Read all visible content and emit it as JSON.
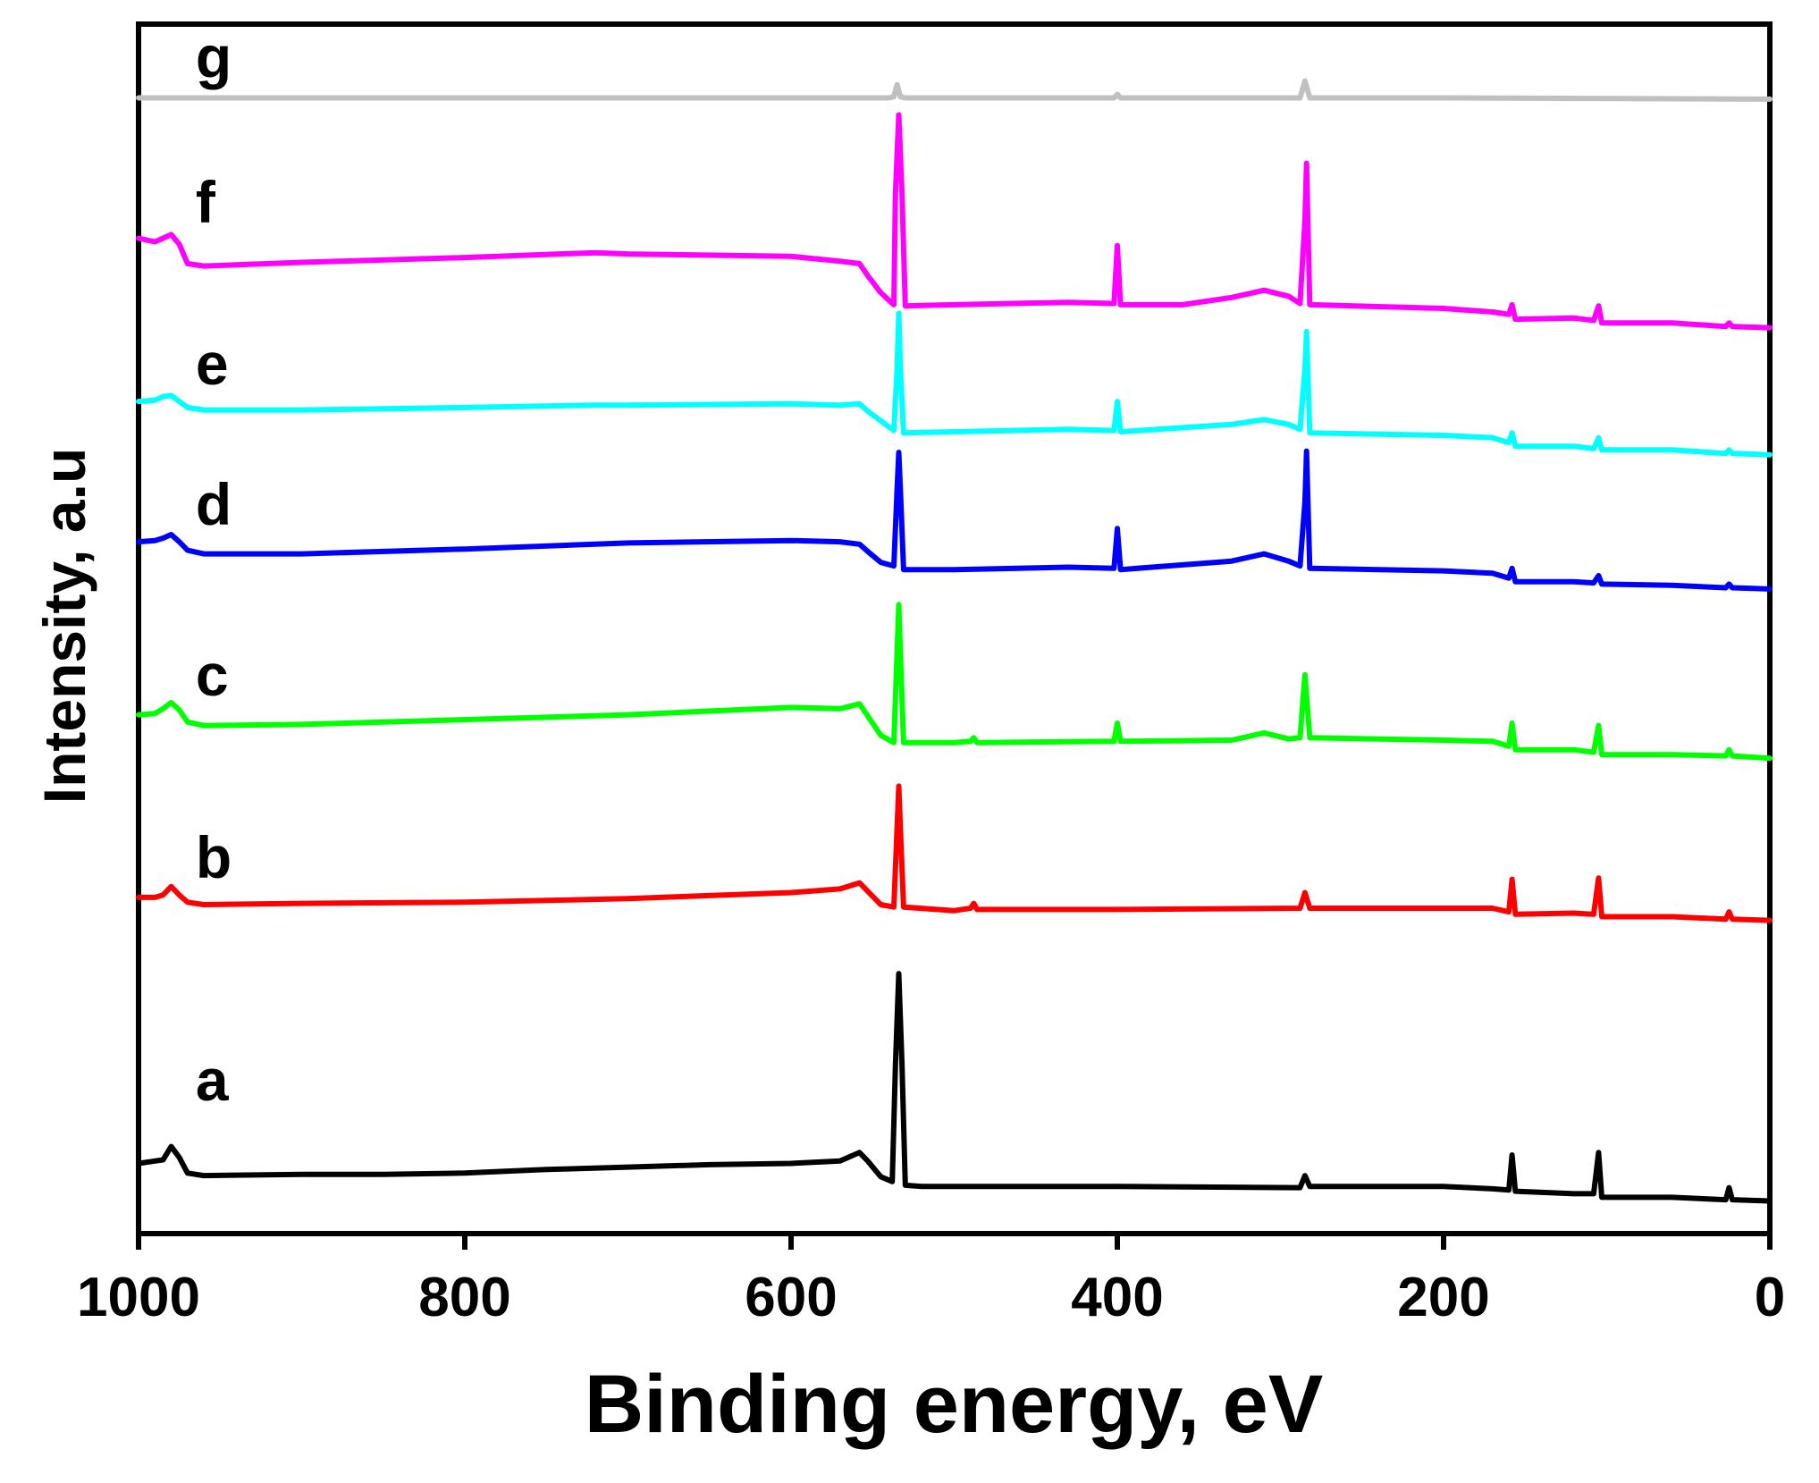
{
  "chart_data": {
    "type": "line",
    "title": "",
    "xlabel": "Binding energy, eV",
    "ylabel": "Intensity, a.u",
    "xlim": [
      1000,
      0
    ],
    "x_inverted": true,
    "x_ticks": [
      1000,
      800,
      600,
      400,
      200,
      0
    ],
    "x_tick_labels": [
      "1000",
      "800",
      "600",
      "400",
      "200",
      "0"
    ],
    "ylim": [
      0,
      100
    ],
    "y_ticks_shown": false,
    "grid": false,
    "legend": "inline labels at left",
    "series": [
      {
        "name": "a",
        "color": "#000000",
        "label_x": 965,
        "label_y": 11.0,
        "points": [
          [
            1000,
            5.8
          ],
          [
            990,
            6.0
          ],
          [
            985,
            6.1
          ],
          [
            980,
            7.2
          ],
          [
            975,
            6.3
          ],
          [
            970,
            5.0
          ],
          [
            960,
            4.8
          ],
          [
            900,
            4.9
          ],
          [
            850,
            4.9
          ],
          [
            800,
            5.0
          ],
          [
            750,
            5.3
          ],
          [
            700,
            5.5
          ],
          [
            650,
            5.7
          ],
          [
            600,
            5.8
          ],
          [
            570,
            6.0
          ],
          [
            558,
            6.7
          ],
          [
            553,
            6.0
          ],
          [
            545,
            4.7
          ],
          [
            538,
            4.3
          ],
          [
            536,
            14.0
          ],
          [
            534,
            21.5
          ],
          [
            532,
            14.0
          ],
          [
            530,
            4.0
          ],
          [
            520,
            3.9
          ],
          [
            400,
            3.9
          ],
          [
            288,
            3.8
          ],
          [
            285,
            4.8
          ],
          [
            282,
            3.9
          ],
          [
            200,
            3.9
          ],
          [
            170,
            3.7
          ],
          [
            160,
            3.6
          ],
          [
            158,
            6.5
          ],
          [
            156,
            3.5
          ],
          [
            120,
            3.3
          ],
          [
            108,
            3.3
          ],
          [
            105,
            6.7
          ],
          [
            103,
            3.0
          ],
          [
            60,
            3.0
          ],
          [
            27,
            2.8
          ],
          [
            25,
            3.8
          ],
          [
            23,
            2.8
          ],
          [
            0,
            2.7
          ]
        ]
      },
      {
        "name": "b",
        "color": "#ff0000",
        "label_x": 965,
        "label_y": 29.4,
        "points": [
          [
            1000,
            27.8
          ],
          [
            990,
            27.8
          ],
          [
            985,
            28.0
          ],
          [
            980,
            28.7
          ],
          [
            975,
            28.0
          ],
          [
            970,
            27.4
          ],
          [
            960,
            27.2
          ],
          [
            900,
            27.3
          ],
          [
            800,
            27.4
          ],
          [
            700,
            27.7
          ],
          [
            600,
            28.2
          ],
          [
            570,
            28.5
          ],
          [
            558,
            29.0
          ],
          [
            553,
            28.3
          ],
          [
            545,
            27.2
          ],
          [
            537,
            27.0
          ],
          [
            535,
            33.5
          ],
          [
            534,
            37.0
          ],
          [
            533,
            33.5
          ],
          [
            531,
            27.0
          ],
          [
            500,
            26.7
          ],
          [
            490,
            26.9
          ],
          [
            488,
            27.3
          ],
          [
            486,
            26.8
          ],
          [
            400,
            26.8
          ],
          [
            288,
            26.9
          ],
          [
            285,
            28.2
          ],
          [
            282,
            26.9
          ],
          [
            200,
            26.9
          ],
          [
            170,
            26.9
          ],
          [
            160,
            26.6
          ],
          [
            158,
            29.3
          ],
          [
            156,
            26.4
          ],
          [
            120,
            26.5
          ],
          [
            108,
            26.4
          ],
          [
            105,
            29.4
          ],
          [
            103,
            26.2
          ],
          [
            60,
            26.2
          ],
          [
            27,
            26.0
          ],
          [
            25,
            26.6
          ],
          [
            23,
            26.0
          ],
          [
            0,
            25.9
          ]
        ]
      },
      {
        "name": "c",
        "color": "#00ff00",
        "label_x": 965,
        "label_y": 44.5,
        "points": [
          [
            1000,
            42.9
          ],
          [
            990,
            43.0
          ],
          [
            985,
            43.4
          ],
          [
            980,
            43.9
          ],
          [
            975,
            43.3
          ],
          [
            970,
            42.3
          ],
          [
            960,
            42.0
          ],
          [
            900,
            42.1
          ],
          [
            800,
            42.5
          ],
          [
            700,
            42.9
          ],
          [
            600,
            43.5
          ],
          [
            570,
            43.4
          ],
          [
            558,
            43.8
          ],
          [
            553,
            42.8
          ],
          [
            545,
            41.2
          ],
          [
            537,
            40.6
          ],
          [
            535,
            48.0
          ],
          [
            534,
            52.0
          ],
          [
            533,
            48.0
          ],
          [
            531,
            40.6
          ],
          [
            500,
            40.6
          ],
          [
            490,
            40.7
          ],
          [
            488,
            41.0
          ],
          [
            486,
            40.6
          ],
          [
            402,
            40.7
          ],
          [
            400,
            42.2
          ],
          [
            398,
            40.7
          ],
          [
            330,
            40.8
          ],
          [
            310,
            41.4
          ],
          [
            295,
            40.9
          ],
          [
            288,
            41.0
          ],
          [
            285,
            46.2
          ],
          [
            282,
            41.0
          ],
          [
            200,
            40.8
          ],
          [
            170,
            40.7
          ],
          [
            160,
            40.3
          ],
          [
            158,
            42.2
          ],
          [
            156,
            40.0
          ],
          [
            120,
            40.0
          ],
          [
            108,
            39.8
          ],
          [
            105,
            42.0
          ],
          [
            103,
            39.6
          ],
          [
            60,
            39.6
          ],
          [
            27,
            39.5
          ],
          [
            25,
            40.0
          ],
          [
            23,
            39.5
          ],
          [
            0,
            39.3
          ]
        ]
      },
      {
        "name": "d",
        "color": "#0000ff",
        "label_x": 965,
        "label_y": 58.6,
        "points": [
          [
            1000,
            57.2
          ],
          [
            990,
            57.3
          ],
          [
            985,
            57.5
          ],
          [
            980,
            57.8
          ],
          [
            975,
            57.2
          ],
          [
            970,
            56.5
          ],
          [
            960,
            56.2
          ],
          [
            900,
            56.2
          ],
          [
            800,
            56.6
          ],
          [
            700,
            57.1
          ],
          [
            600,
            57.3
          ],
          [
            570,
            57.2
          ],
          [
            558,
            57.0
          ],
          [
            553,
            56.4
          ],
          [
            545,
            55.5
          ],
          [
            537,
            55.2
          ],
          [
            535,
            61.5
          ],
          [
            534,
            64.6
          ],
          [
            533,
            61.5
          ],
          [
            531,
            54.9
          ],
          [
            500,
            54.9
          ],
          [
            430,
            55.1
          ],
          [
            402,
            55.0
          ],
          [
            400,
            58.3
          ],
          [
            398,
            54.9
          ],
          [
            330,
            55.6
          ],
          [
            310,
            56.2
          ],
          [
            295,
            55.6
          ],
          [
            288,
            55.2
          ],
          [
            285,
            60.5
          ],
          [
            284,
            64.7
          ],
          [
            282,
            55.0
          ],
          [
            200,
            54.8
          ],
          [
            170,
            54.6
          ],
          [
            160,
            54.2
          ],
          [
            158,
            55.0
          ],
          [
            156,
            53.9
          ],
          [
            120,
            53.9
          ],
          [
            108,
            53.8
          ],
          [
            105,
            54.4
          ],
          [
            103,
            53.7
          ],
          [
            60,
            53.6
          ],
          [
            27,
            53.4
          ],
          [
            25,
            53.7
          ],
          [
            23,
            53.4
          ],
          [
            0,
            53.3
          ]
        ]
      },
      {
        "name": "e",
        "color": "#00ffff",
        "label_x": 965,
        "label_y": 70.2,
        "points": [
          [
            1000,
            68.8
          ],
          [
            990,
            68.9
          ],
          [
            985,
            69.2
          ],
          [
            980,
            69.3
          ],
          [
            975,
            68.8
          ],
          [
            970,
            68.3
          ],
          [
            960,
            68.1
          ],
          [
            900,
            68.1
          ],
          [
            800,
            68.3
          ],
          [
            720,
            68.5
          ],
          [
            700,
            68.5
          ],
          [
            600,
            68.6
          ],
          [
            570,
            68.5
          ],
          [
            558,
            68.6
          ],
          [
            553,
            68.0
          ],
          [
            545,
            67.2
          ],
          [
            537,
            66.4
          ],
          [
            535,
            71.5
          ],
          [
            534,
            76.1
          ],
          [
            533,
            71.5
          ],
          [
            531,
            66.2
          ],
          [
            500,
            66.3
          ],
          [
            430,
            66.5
          ],
          [
            402,
            66.4
          ],
          [
            400,
            68.8
          ],
          [
            398,
            66.3
          ],
          [
            330,
            66.9
          ],
          [
            310,
            67.3
          ],
          [
            295,
            66.9
          ],
          [
            288,
            66.5
          ],
          [
            285,
            71.5
          ],
          [
            284,
            74.6
          ],
          [
            282,
            66.2
          ],
          [
            200,
            66.0
          ],
          [
            170,
            65.8
          ],
          [
            160,
            65.4
          ],
          [
            158,
            66.2
          ],
          [
            156,
            65.1
          ],
          [
            120,
            65.1
          ],
          [
            108,
            64.9
          ],
          [
            105,
            65.8
          ],
          [
            103,
            64.8
          ],
          [
            60,
            64.8
          ],
          [
            27,
            64.5
          ],
          [
            25,
            64.8
          ],
          [
            23,
            64.5
          ],
          [
            0,
            64.4
          ]
        ]
      },
      {
        "name": "f",
        "color": "#ff00ff",
        "label_x": 965,
        "label_y": 83.6,
        "points": [
          [
            1000,
            82.3
          ],
          [
            990,
            82.0
          ],
          [
            985,
            82.3
          ],
          [
            980,
            82.6
          ],
          [
            975,
            81.8
          ],
          [
            970,
            80.2
          ],
          [
            960,
            80.0
          ],
          [
            900,
            80.3
          ],
          [
            800,
            80.7
          ],
          [
            720,
            81.1
          ],
          [
            700,
            81.0
          ],
          [
            600,
            80.8
          ],
          [
            570,
            80.4
          ],
          [
            558,
            80.2
          ],
          [
            553,
            79.2
          ],
          [
            545,
            77.8
          ],
          [
            537,
            76.8
          ],
          [
            536,
            86.0
          ],
          [
            534,
            92.5
          ],
          [
            532,
            86.0
          ],
          [
            530,
            76.7
          ],
          [
            500,
            76.8
          ],
          [
            430,
            77.0
          ],
          [
            402,
            76.9
          ],
          [
            400,
            81.7
          ],
          [
            398,
            76.8
          ],
          [
            360,
            76.8
          ],
          [
            330,
            77.4
          ],
          [
            310,
            78.0
          ],
          [
            295,
            77.5
          ],
          [
            288,
            76.9
          ],
          [
            285,
            83.8
          ],
          [
            284,
            88.5
          ],
          [
            282,
            76.8
          ],
          [
            200,
            76.5
          ],
          [
            170,
            76.2
          ],
          [
            160,
            76.0
          ],
          [
            158,
            76.8
          ],
          [
            156,
            75.6
          ],
          [
            120,
            75.7
          ],
          [
            108,
            75.5
          ],
          [
            105,
            76.7
          ],
          [
            103,
            75.3
          ],
          [
            60,
            75.3
          ],
          [
            27,
            75.0
          ],
          [
            25,
            75.3
          ],
          [
            23,
            75.0
          ],
          [
            0,
            74.9
          ]
        ]
      },
      {
        "name": "g",
        "color": "#c0c0c0",
        "label_x": 965,
        "label_y": 95.6,
        "points": [
          [
            1000,
            93.9
          ],
          [
            900,
            93.9
          ],
          [
            800,
            93.9
          ],
          [
            700,
            93.9
          ],
          [
            600,
            93.9
          ],
          [
            540,
            93.9
          ],
          [
            537,
            94.0
          ],
          [
            535,
            95.0
          ],
          [
            533,
            94.0
          ],
          [
            530,
            93.9
          ],
          [
            402,
            93.9
          ],
          [
            400,
            94.2
          ],
          [
            398,
            93.9
          ],
          [
            288,
            93.9
          ],
          [
            285,
            95.3
          ],
          [
            282,
            93.9
          ],
          [
            200,
            93.9
          ],
          [
            0,
            93.8
          ]
        ]
      }
    ]
  }
}
